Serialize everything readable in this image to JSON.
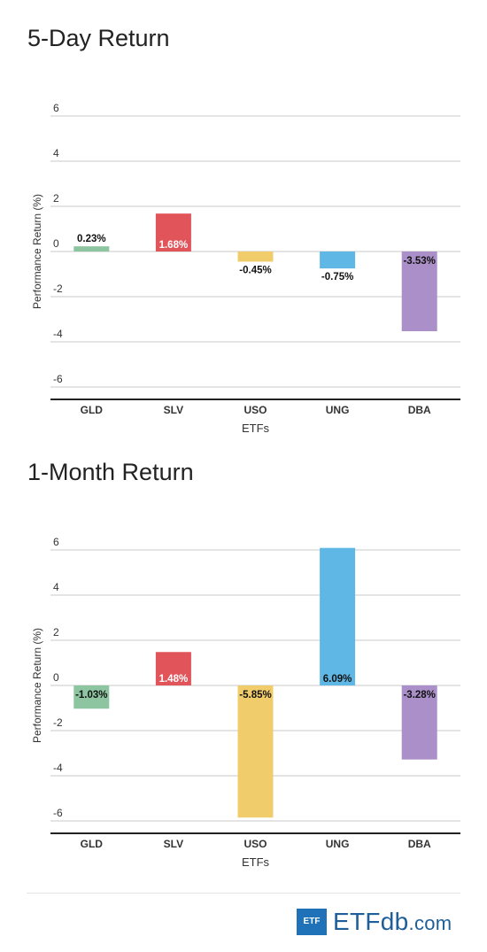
{
  "chart_data": [
    {
      "type": "bar",
      "title": "5-Day Return",
      "xlabel": "ETFs",
      "ylabel": "Performance Return (%)",
      "categories": [
        "GLD",
        "SLV",
        "USO",
        "UNG",
        "DBA"
      ],
      "values": [
        0.23,
        1.68,
        -0.45,
        -0.75,
        -3.53
      ],
      "data_labels": [
        "0.23%",
        "1.68%",
        "-0.45%",
        "-0.75%",
        "-3.53%"
      ],
      "colors": [
        "#8cc5a0",
        "#e0545a",
        "#f0cc6b",
        "#5fb7e6",
        "#ab8fc8"
      ],
      "yticks": [
        6,
        4,
        2,
        0,
        -2,
        -4,
        -6
      ],
      "ylim": [
        -6,
        6
      ],
      "grid": true
    },
    {
      "type": "bar",
      "title": "1-Month Return",
      "xlabel": "ETFs",
      "ylabel": "Performance Return (%)",
      "categories": [
        "GLD",
        "SLV",
        "USO",
        "UNG",
        "DBA"
      ],
      "values": [
        -1.03,
        1.48,
        -5.85,
        6.09,
        -3.28
      ],
      "data_labels": [
        "-1.03%",
        "1.48%",
        "-5.85%",
        "6.09%",
        "-3.28%"
      ],
      "colors": [
        "#8cc5a0",
        "#e0545a",
        "#f0cc6b",
        "#5fb7e6",
        "#ab8fc8"
      ],
      "yticks": [
        6,
        4,
        2,
        0,
        -2,
        -4,
        -6
      ],
      "ylim": [
        -6,
        6
      ],
      "grid": true
    }
  ],
  "footer": {
    "logo_box": "ETF",
    "logo_main": "ETF",
    "logo_db": "db",
    "logo_com": ".com"
  }
}
